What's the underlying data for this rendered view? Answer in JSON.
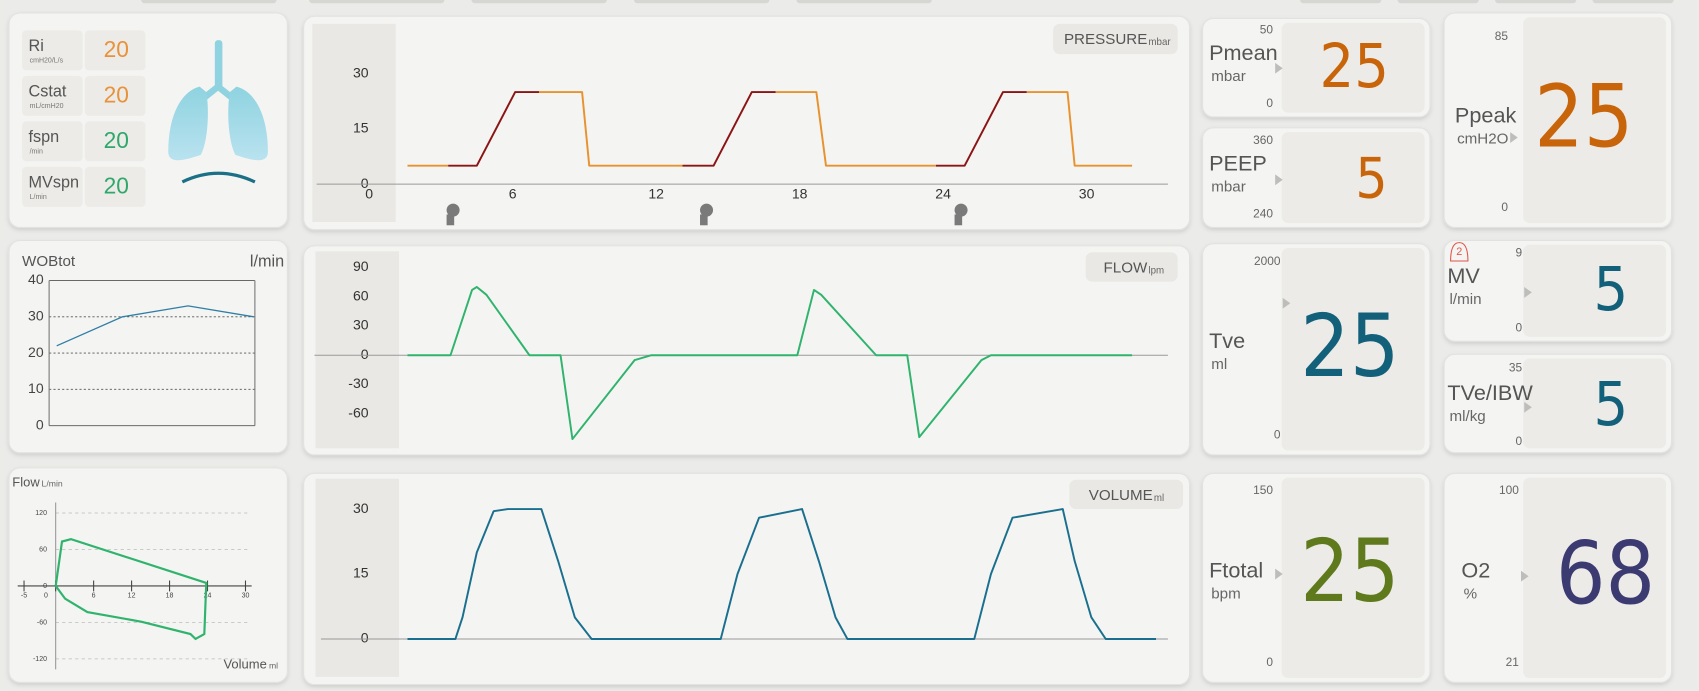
{
  "params": [
    {
      "label": "Ri",
      "unit": "cmH20/L/s",
      "value": 20,
      "color": "#e8923a"
    },
    {
      "label": "Cstat",
      "unit": "mL/cmH20",
      "value": 20,
      "color": "#e8923a"
    },
    {
      "label": "fspn",
      "unit": "/min",
      "value": 20,
      "color": "#2fa86a"
    },
    {
      "label": "MVspn",
      "unit": "L/min",
      "value": 20,
      "color": "#2fa86a"
    }
  ],
  "wob": {
    "type": "line",
    "title": "WOBtot",
    "unit": "l/min",
    "categories": [
      null,
      null,
      null,
      null
    ],
    "values": [
      22,
      30,
      33,
      30
    ],
    "color": "#2f7fa6",
    "ylim": [
      0,
      40
    ],
    "yticks": [
      0,
      10,
      20,
      30,
      40
    ],
    "grid": true
  },
  "loop": {
    "type": "loop",
    "ylabel": "Flow",
    "yunit": "L/min",
    "xlabel": "Volume",
    "xunit": "ml",
    "color": "#2fb36d",
    "x": [
      0,
      1,
      2.4,
      23.8,
      23.5,
      22.1,
      21.3,
      13.6,
      5,
      1.5,
      0
    ],
    "values": [
      0,
      73,
      77,
      5,
      -79,
      -87,
      -79,
      -59,
      -43,
      -21,
      0
    ],
    "xlim": [
      -6,
      32
    ],
    "ylim": [
      -130,
      130
    ],
    "xticks": [
      -5,
      0,
      6,
      12,
      18,
      24,
      30
    ],
    "yticks": [
      120,
      60,
      0,
      -60,
      -120
    ],
    "grid": true
  },
  "waveforms": [
    {
      "type": "line",
      "title": "PRESSURE",
      "unit": "mbar",
      "xlim": [
        -2.2,
        33.4
      ],
      "ylim": [
        -12,
        44
      ],
      "yticks": [
        0,
        15,
        30
      ],
      "xticks": [
        0,
        6,
        12,
        18,
        24,
        30
      ],
      "x": [
        1.6,
        3.3,
        4.5,
        6.1,
        7.1,
        8.9,
        9.2,
        13.1,
        14.4,
        16.0,
        17.0,
        18.7,
        19.1,
        23.7,
        24.9,
        26.5,
        27.5,
        29.2,
        29.5,
        31.9
      ],
      "series": [
        {
          "color": "#8b1414",
          "values": [
            null,
            5,
            5,
            25,
            25,
            null,
            null,
            5,
            5,
            25,
            25,
            null,
            null,
            5,
            5,
            25,
            25,
            null,
            null,
            null
          ]
        },
        {
          "color": "#e8922e",
          "values": [
            5,
            5,
            null,
            null,
            25,
            25,
            5,
            5,
            null,
            null,
            25,
            25,
            5,
            5,
            null,
            null,
            25,
            25,
            5,
            5
          ]
        }
      ]
    },
    {
      "type": "line",
      "title": "FLOW",
      "unit": "lpm",
      "xlim": [
        -2.2,
        33.4
      ],
      "ylim": [
        -95,
        106
      ],
      "yticks": [
        90,
        60,
        30,
        0,
        -30,
        -60
      ],
      "x": [
        1.6,
        3.4,
        4.3,
        4.5,
        4.9,
        6.7,
        8.0,
        8.5,
        11.1,
        11.8,
        17.9,
        18.6,
        18.9,
        21.2,
        22.5,
        23.0,
        25.6,
        26.0,
        31.9
      ],
      "series": [
        {
          "color": "#2fb36d",
          "values": [
            0,
            0,
            67,
            70,
            62,
            0,
            0,
            -86,
            -5,
            0,
            0,
            67,
            62,
            0,
            0,
            -84,
            -5,
            0,
            0
          ]
        }
      ]
    },
    {
      "type": "line",
      "title": "VOLUME",
      "unit": "ml",
      "xlim": [
        -2.2,
        33.4
      ],
      "ylim": [
        -8,
        37
      ],
      "yticks": [
        0,
        15,
        30
      ],
      "x": [
        1.6,
        3.6,
        3.9,
        4.5,
        5.2,
        5.8,
        7.2,
        7.9,
        8.6,
        9.3,
        14.7,
        15.4,
        16.3,
        18.1,
        18.8,
        19.5,
        20.0,
        25.3,
        26.0,
        26.9,
        29.0,
        29.5,
        30.2,
        30.8,
        32.9
      ],
      "series": [
        {
          "color": "#1a6f8e",
          "values": [
            0,
            0,
            5,
            20,
            29.5,
            30,
            30,
            18,
            5,
            0,
            0,
            15,
            28,
            30,
            18,
            5,
            0,
            0,
            15,
            28,
            30,
            18,
            5,
            0,
            0
          ]
        }
      ]
    }
  ],
  "tiles": [
    {
      "label": "Pmean",
      "unit": "mbar",
      "scale_max": 50,
      "scale_min": 0,
      "value": 25,
      "color": "#c8640a"
    },
    {
      "label": "PEEP",
      "unit": "mbar",
      "scale_max": 360,
      "scale_min": 240,
      "value": 5,
      "color": "#c8640a"
    },
    {
      "label": "Ppeak",
      "unit": "cmH2O",
      "scale_max": 85,
      "scale_min": 0,
      "value": 25,
      "color": "#c8640a"
    },
    {
      "label": "Tve",
      "unit": "ml",
      "scale_max": 2000,
      "scale_min": 0,
      "value": 25,
      "color": "#13607a"
    },
    {
      "label": "MV",
      "unit": "l/min",
      "scale_max": 9,
      "scale_min": 0,
      "value": 5,
      "color": "#13607a",
      "alarm": 2
    },
    {
      "label": "TVe/IBW",
      "unit": "ml/kg",
      "scale_max": 35,
      "scale_min": 0,
      "value": 5,
      "color": "#13607a"
    },
    {
      "label": "Ftotal",
      "unit": "bpm",
      "scale_max": 150,
      "scale_min": 0,
      "value": 25,
      "color": "#5e7a1c"
    },
    {
      "label": "O2",
      "unit": "%",
      "scale_max": 100,
      "scale_min": 21,
      "value": 68,
      "color": "#3b3b72"
    }
  ]
}
